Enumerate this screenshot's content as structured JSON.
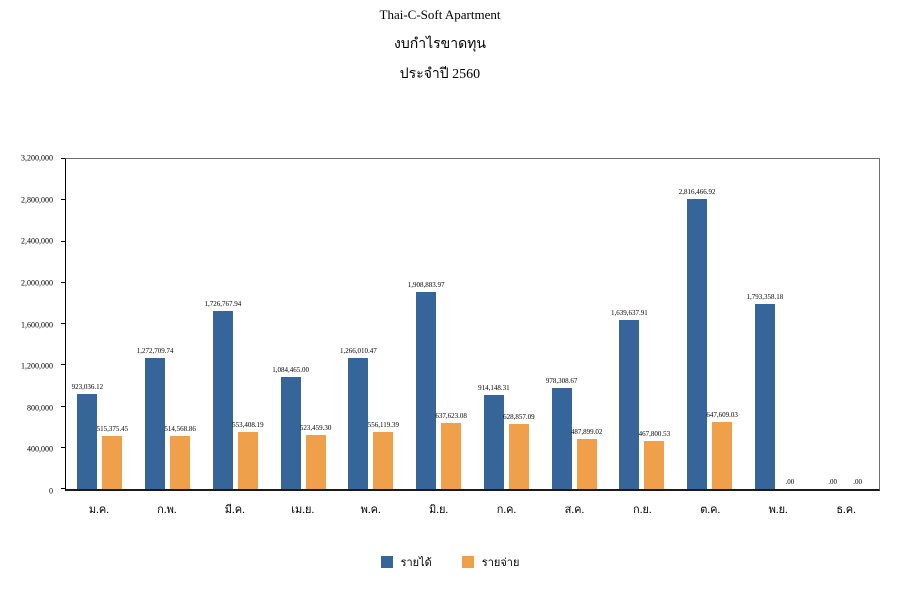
{
  "page": {
    "title_line1": "Thai-C-Soft Apartment",
    "title_line2": "งบกำไรขาดทุน",
    "title_line3": "ประจำปี  2560"
  },
  "chart_data": {
    "type": "bar",
    "title": "Thai-C-Soft Apartment",
    "subtitle": "งบกำไรขาดทุน ประจำปี 2560",
    "categories": [
      "ม.ค.",
      "ก.พ.",
      "มี.ค.",
      "เม.ย.",
      "พ.ค.",
      "มิ.ย.",
      "ก.ค.",
      "ส.ค.",
      "ก.ย.",
      "ต.ค.",
      "พ.ย.",
      "ธ.ค."
    ],
    "series": [
      {
        "name": "รายได้",
        "color": "#366599",
        "values": [
          923036.12,
          1272709.74,
          1726767.94,
          1084465.0,
          1266010.47,
          1908883.97,
          914148.31,
          978308.67,
          1639637.91,
          2816466.92,
          1793358.18,
          0.0
        ],
        "labels": [
          "923,036.12",
          "1,272,709.74",
          "1,726,767.94",
          "1,084,465.00",
          "1,266,010.47",
          "1,908,883.97",
          "914,148.31",
          "978,308.67",
          "1,639,637.91",
          "2,816,466.92",
          "1,793,358.18",
          ".00"
        ]
      },
      {
        "name": "รายจ่าย",
        "color": "#F0A04B",
        "values": [
          515375.45,
          514568.86,
          553408.19,
          523459.3,
          556119.39,
          637623.08,
          628857.09,
          487899.02,
          467800.53,
          647609.03,
          0.0,
          0.0
        ],
        "labels": [
          "515,375.45",
          "514,568.86",
          "553,408.19",
          "523,459.30",
          "556,119.39",
          "637,623.08",
          "628,857.09",
          "487,899.02",
          "467,800.53",
          "647,609.03",
          ".00",
          ".00"
        ]
      }
    ],
    "xlabel": "",
    "ylabel": "",
    "ylim": [
      0,
      3200000
    ],
    "ytick_step": 400000,
    "yticks": [
      "3,200,000",
      "2,800,000",
      "2,400,000",
      "2,000,000",
      "1,600,000",
      "1,200,000",
      "800,000",
      "400,000",
      "0"
    ],
    "grid": false,
    "legend_position": "bottom"
  }
}
